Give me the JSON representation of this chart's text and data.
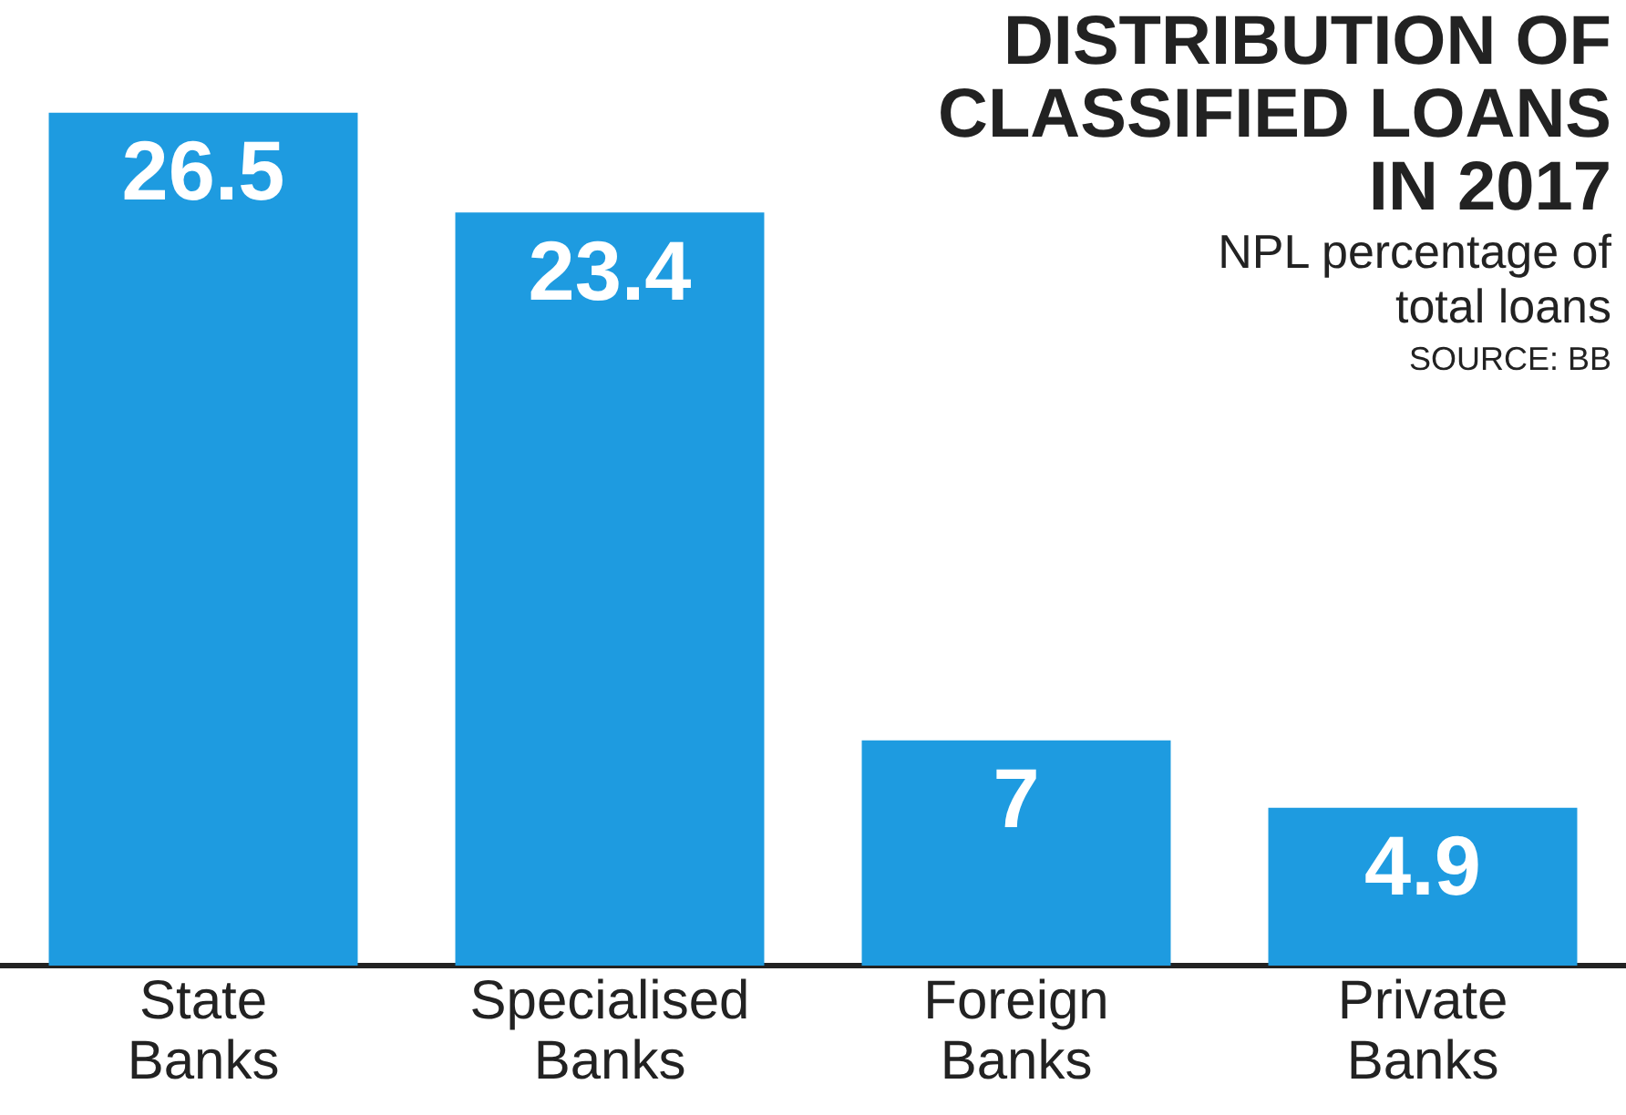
{
  "chart_data": {
    "type": "bar",
    "title": "DISTRIBUTION OF CLASSIFIED LOANS IN 2017",
    "subtitle": "NPL percentage of total loans",
    "annotations": [
      "SOURCE: BB"
    ],
    "categories": [
      "State Banks",
      "Specialised Banks",
      "Foreign Banks",
      "Private Banks"
    ],
    "values": [
      26.5,
      23.4,
      7,
      4.9
    ],
    "color": "#1e9be0",
    "data_labels": true
  }
}
